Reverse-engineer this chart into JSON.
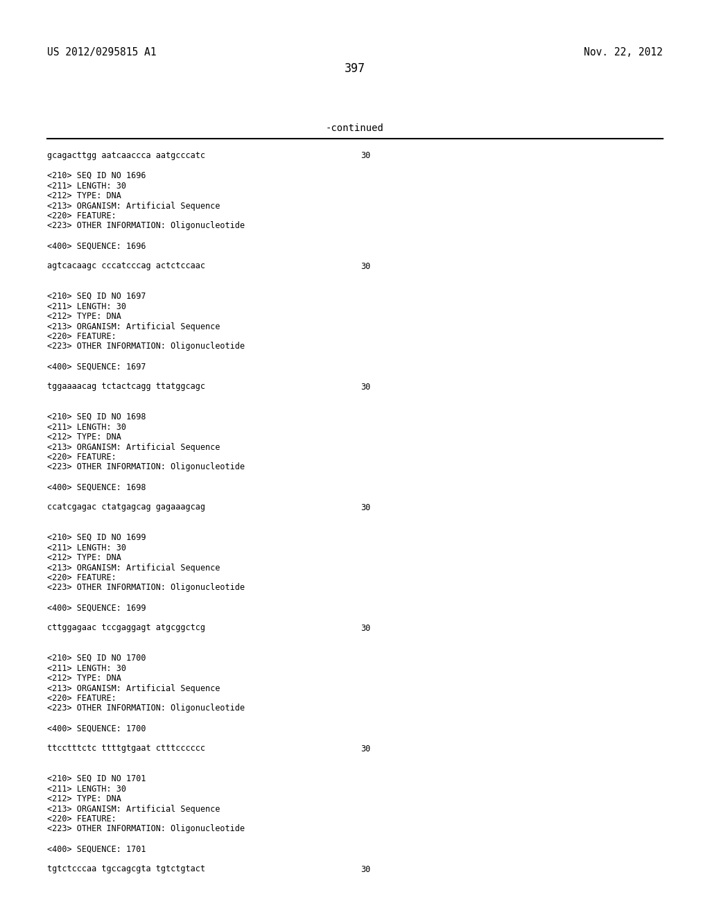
{
  "background_color": "#ffffff",
  "header_left": "US 2012/0295815 A1",
  "header_right": "Nov. 22, 2012",
  "page_number": "397",
  "continued_label": "-continued",
  "text_color": "#000000",
  "font_size_header": 10.5,
  "font_size_page": 12,
  "font_size_continued": 10,
  "font_size_content": 8.5,
  "mono_font": "DejaVu Sans Mono",
  "lines": [
    {
      "text": "gcagacttgg aatcaaccca aatgcccatc",
      "num": "30"
    },
    {
      "text": ""
    },
    {
      "text": "<210> SEQ ID NO 1696"
    },
    {
      "text": "<211> LENGTH: 30"
    },
    {
      "text": "<212> TYPE: DNA"
    },
    {
      "text": "<213> ORGANISM: Artificial Sequence"
    },
    {
      "text": "<220> FEATURE:"
    },
    {
      "text": "<223> OTHER INFORMATION: Oligonucleotide"
    },
    {
      "text": ""
    },
    {
      "text": "<400> SEQUENCE: 1696"
    },
    {
      "text": ""
    },
    {
      "text": "agtcacaagc cccatcccag actctccaac",
      "num": "30"
    },
    {
      "text": ""
    },
    {
      "text": ""
    },
    {
      "text": "<210> SEQ ID NO 1697"
    },
    {
      "text": "<211> LENGTH: 30"
    },
    {
      "text": "<212> TYPE: DNA"
    },
    {
      "text": "<213> ORGANISM: Artificial Sequence"
    },
    {
      "text": "<220> FEATURE:"
    },
    {
      "text": "<223> OTHER INFORMATION: Oligonucleotide"
    },
    {
      "text": ""
    },
    {
      "text": "<400> SEQUENCE: 1697"
    },
    {
      "text": ""
    },
    {
      "text": "tggaaaacag tctactcagg ttatggcagc",
      "num": "30"
    },
    {
      "text": ""
    },
    {
      "text": ""
    },
    {
      "text": "<210> SEQ ID NO 1698"
    },
    {
      "text": "<211> LENGTH: 30"
    },
    {
      "text": "<212> TYPE: DNA"
    },
    {
      "text": "<213> ORGANISM: Artificial Sequence"
    },
    {
      "text": "<220> FEATURE:"
    },
    {
      "text": "<223> OTHER INFORMATION: Oligonucleotide"
    },
    {
      "text": ""
    },
    {
      "text": "<400> SEQUENCE: 1698"
    },
    {
      "text": ""
    },
    {
      "text": "ccatcgagac ctatgagcag gagaaagcag",
      "num": "30"
    },
    {
      "text": ""
    },
    {
      "text": ""
    },
    {
      "text": "<210> SEQ ID NO 1699"
    },
    {
      "text": "<211> LENGTH: 30"
    },
    {
      "text": "<212> TYPE: DNA"
    },
    {
      "text": "<213> ORGANISM: Artificial Sequence"
    },
    {
      "text": "<220> FEATURE:"
    },
    {
      "text": "<223> OTHER INFORMATION: Oligonucleotide"
    },
    {
      "text": ""
    },
    {
      "text": "<400> SEQUENCE: 1699"
    },
    {
      "text": ""
    },
    {
      "text": "cttggagaac tccgaggagt atgcggctcg",
      "num": "30"
    },
    {
      "text": ""
    },
    {
      "text": ""
    },
    {
      "text": "<210> SEQ ID NO 1700"
    },
    {
      "text": "<211> LENGTH: 30"
    },
    {
      "text": "<212> TYPE: DNA"
    },
    {
      "text": "<213> ORGANISM: Artificial Sequence"
    },
    {
      "text": "<220> FEATURE:"
    },
    {
      "text": "<223> OTHER INFORMATION: Oligonucleotide"
    },
    {
      "text": ""
    },
    {
      "text": "<400> SEQUENCE: 1700"
    },
    {
      "text": ""
    },
    {
      "text": "ttcctttctc ttttgtgaat ctttcccccc",
      "num": "30"
    },
    {
      "text": ""
    },
    {
      "text": ""
    },
    {
      "text": "<210> SEQ ID NO 1701"
    },
    {
      "text": "<211> LENGTH: 30"
    },
    {
      "text": "<212> TYPE: DNA"
    },
    {
      "text": "<213> ORGANISM: Artificial Sequence"
    },
    {
      "text": "<220> FEATURE:"
    },
    {
      "text": "<223> OTHER INFORMATION: Oligonucleotide"
    },
    {
      "text": ""
    },
    {
      "text": "<400> SEQUENCE: 1701"
    },
    {
      "text": ""
    },
    {
      "text": "tgtctcccaa tgccagcgta tgtctgtact",
      "num": "30"
    }
  ]
}
